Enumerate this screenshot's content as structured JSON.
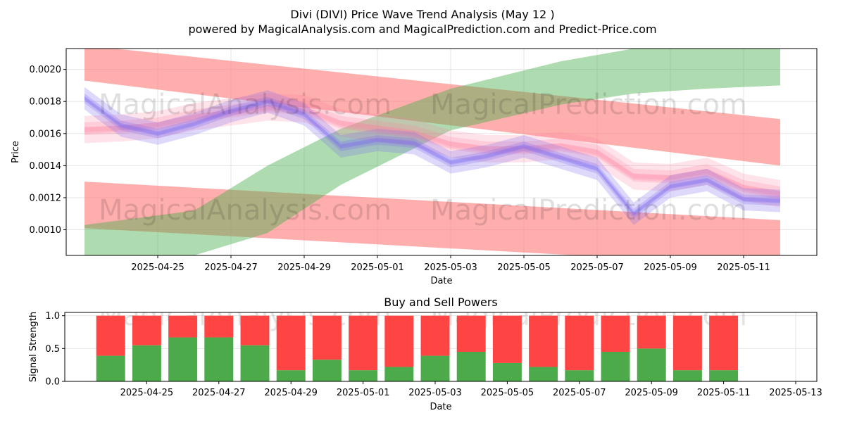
{
  "title_line1": "Divi (DIVI) Price Wave Trend Analysis (May 12 )",
  "title_line2": "powered by MagicalAnalysis.com and MagicalPrediction.com and Predict-Price.com",
  "watermarks": [
    "MagicalAnalysis.com",
    "MagicalPrediction.com"
  ],
  "colors": {
    "red_band": "#ff6b6b",
    "green_band": "#4caf50",
    "blue_wave": "#7b68ee",
    "pink_wave": "#ff7f9f",
    "buy": "#4caa4a",
    "sell": "#ff4444",
    "grid": "#e6e6e6"
  },
  "chart_data": [
    {
      "type": "area",
      "title": "",
      "xlabel": "Date",
      "ylabel": "Price",
      "x_range": [
        "2025-04-22T12:00",
        "2025-05-13T00:00"
      ],
      "ylim": [
        0.00084,
        0.00213
      ],
      "xticks": [
        "2025-04-25",
        "2025-04-27",
        "2025-04-29",
        "2025-05-01",
        "2025-05-03",
        "2025-05-05",
        "2025-05-07",
        "2025-05-09",
        "2025-05-11"
      ],
      "yticks": [
        0.001,
        0.0012,
        0.0014,
        0.0016,
        0.0018,
        0.002
      ],
      "ytick_labels": [
        "0.0010",
        "0.0012",
        "0.0014",
        "0.0016",
        "0.0018",
        "0.0020"
      ],
      "grid": true,
      "bands": [
        {
          "name": "upper-trend-channel",
          "color": "red",
          "x": [
            "2025-04-23",
            "2025-05-12"
          ],
          "upper": [
            0.00215,
            0.00169
          ],
          "lower": [
            0.00193,
            0.0014
          ]
        },
        {
          "name": "lower-trend-channel",
          "color": "red",
          "x": [
            "2025-04-23",
            "2025-05-12"
          ],
          "upper": [
            0.0013,
            0.00106
          ],
          "lower": [
            0.00101,
            0.00077
          ]
        },
        {
          "name": "rising-trend-channel",
          "color": "green",
          "x": [
            "2025-04-23",
            "2025-04-26",
            "2025-04-28",
            "2025-04-30",
            "2025-05-03",
            "2025-05-06",
            "2025-05-08",
            "2025-05-10",
            "2025-05-12"
          ],
          "upper": [
            0.00103,
            0.00112,
            0.0014,
            0.00163,
            0.00188,
            0.00205,
            0.00213,
            0.00215,
            0.00215
          ],
          "lower": [
            0.00084,
            0.00084,
            0.00098,
            0.00128,
            0.00162,
            0.00178,
            0.00185,
            0.00188,
            0.0019
          ]
        }
      ],
      "series": [
        {
          "name": "blue-wave",
          "color": "blue",
          "x": [
            "2025-04-23",
            "2025-04-24",
            "2025-04-25",
            "2025-04-26",
            "2025-04-27",
            "2025-04-28",
            "2025-04-29",
            "2025-04-30",
            "2025-05-01",
            "2025-05-02",
            "2025-05-03",
            "2025-05-04",
            "2025-05-05",
            "2025-05-06",
            "2025-05-07",
            "2025-05-08",
            "2025-05-09",
            "2025-05-10",
            "2025-05-11",
            "2025-05-12"
          ],
          "values": [
            0.00182,
            0.00165,
            0.0016,
            0.00166,
            0.00174,
            0.0018,
            0.00172,
            0.00152,
            0.00156,
            0.00154,
            0.00142,
            0.00146,
            0.00152,
            0.00145,
            0.00138,
            0.0011,
            0.00127,
            0.00131,
            0.00119,
            0.00118
          ]
        },
        {
          "name": "pink-wave",
          "color": "pink",
          "x": [
            "2025-04-23",
            "2025-04-24",
            "2025-04-25",
            "2025-04-26",
            "2025-04-27",
            "2025-04-28",
            "2025-04-29",
            "2025-04-30",
            "2025-05-01",
            "2025-05-02",
            "2025-05-03",
            "2025-05-04",
            "2025-05-05",
            "2025-05-06",
            "2025-05-07",
            "2025-05-08",
            "2025-05-09",
            "2025-05-10",
            "2025-05-11",
            "2025-05-12"
          ],
          "values": [
            0.00162,
            0.00163,
            0.00165,
            0.0017,
            0.00173,
            0.00176,
            0.00175,
            0.00166,
            0.00163,
            0.0016,
            0.00153,
            0.0015,
            0.0015,
            0.00152,
            0.00148,
            0.00133,
            0.00132,
            0.00136,
            0.00126,
            0.00122
          ]
        }
      ]
    },
    {
      "type": "bar",
      "title": "Buy and Sell Powers",
      "xlabel": "Date",
      "ylabel": "Signal Strength",
      "x_range": [
        "2025-04-23T00:00",
        "2025-05-13T00:00"
      ],
      "ylim": [
        0,
        1.05
      ],
      "yticks": [
        0.0,
        0.5,
        1.0
      ],
      "ytick_labels": [
        "0.0",
        "0.5",
        "1.0"
      ],
      "xticks": [
        "2025-04-25",
        "2025-04-27",
        "2025-04-29",
        "2025-05-01",
        "2025-05-03",
        "2025-05-05",
        "2025-05-07",
        "2025-05-09",
        "2025-05-11",
        "2025-05-13"
      ],
      "grid": true,
      "categories": [
        "2025-04-24",
        "2025-04-25",
        "2025-04-26",
        "2025-04-27",
        "2025-04-28",
        "2025-04-29",
        "2025-04-30",
        "2025-05-01",
        "2025-05-02",
        "2025-05-03",
        "2025-05-04",
        "2025-05-05",
        "2025-05-06",
        "2025-05-07",
        "2025-05-08",
        "2025-05-09",
        "2025-05-10",
        "2025-05-11"
      ],
      "series": [
        {
          "name": "Buy",
          "values": [
            0.39,
            0.55,
            0.67,
            0.67,
            0.55,
            0.17,
            0.33,
            0.17,
            0.22,
            0.39,
            0.45,
            0.28,
            0.22,
            0.17,
            0.45,
            0.5,
            0.17,
            0.17
          ]
        },
        {
          "name": "Sell",
          "values": [
            0.61,
            0.45,
            0.33,
            0.33,
            0.45,
            0.83,
            0.67,
            0.83,
            0.78,
            0.61,
            0.55,
            0.72,
            0.78,
            0.83,
            0.55,
            0.5,
            0.83,
            0.83
          ]
        }
      ]
    }
  ]
}
